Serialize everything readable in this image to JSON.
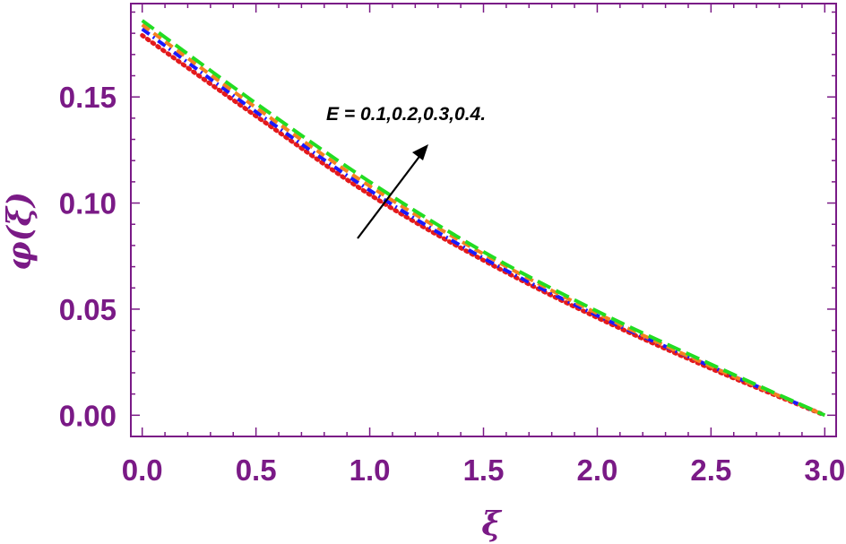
{
  "chart_data": {
    "type": "line",
    "xlabel": "ξ",
    "ylabel": "φ(ξ)",
    "xlim": [
      -0.05,
      3.05
    ],
    "ylim": [
      -0.01,
      0.194
    ],
    "x_ticks": [
      0.0,
      0.5,
      1.0,
      1.5,
      2.0,
      2.5,
      3.0
    ],
    "x_tick_labels": [
      "0.0",
      "0.5",
      "1.0",
      "1.5",
      "2.0",
      "2.5",
      "3.0"
    ],
    "y_ticks": [
      0.0,
      0.05,
      0.1,
      0.15
    ],
    "y_tick_labels": [
      "0.00",
      "0.05",
      "0.10",
      "0.15"
    ],
    "grid": false,
    "annotation": "E = 0.1,0.2,0.3,0.4.",
    "x": [
      0.0,
      0.5,
      1.0,
      1.5,
      2.0,
      2.5,
      3.0
    ],
    "series": [
      {
        "values": [
          0.179,
          0.141,
          0.104,
          0.073,
          0.046,
          0.022,
          0.0
        ],
        "color": "#e41a1c",
        "style": "dotted"
      },
      {
        "values": [
          0.182,
          0.143,
          0.106,
          0.074,
          0.047,
          0.023,
          0.0
        ],
        "color": "#1a1aff",
        "style": "dotdash"
      },
      {
        "values": [
          0.184,
          0.145,
          0.108,
          0.076,
          0.048,
          0.023,
          0.0
        ],
        "color": "#f5821f",
        "style": "dashed"
      },
      {
        "values": [
          0.186,
          0.147,
          0.11,
          0.077,
          0.049,
          0.024,
          0.0
        ],
        "color": "#22dd22",
        "style": "longdash"
      }
    ]
  }
}
